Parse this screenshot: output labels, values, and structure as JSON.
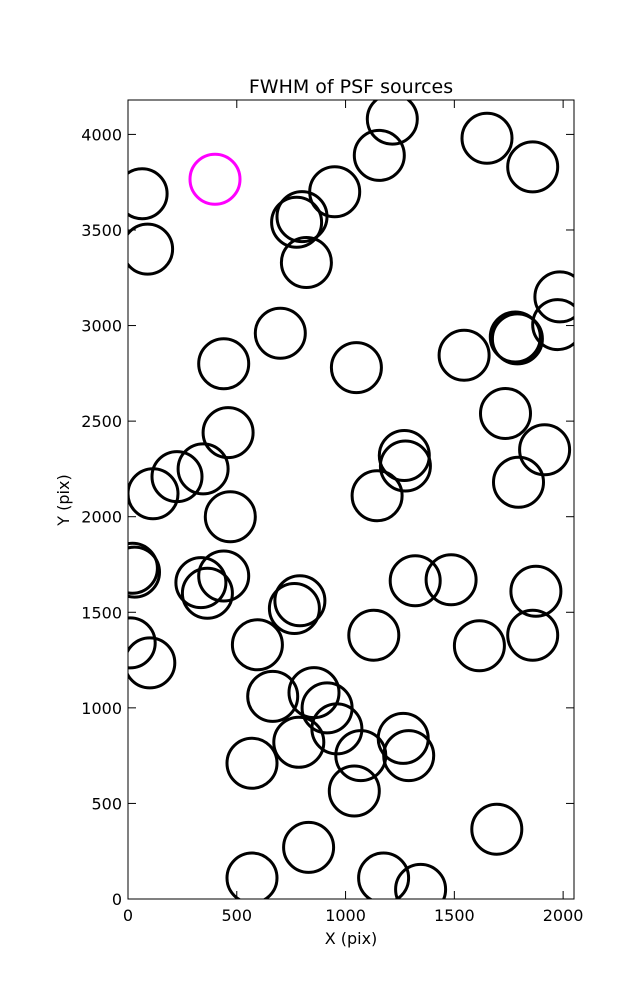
{
  "chart_data": {
    "type": "scatter",
    "title": "FWHM of PSF sources",
    "xlabel": "X (pix)",
    "ylabel": "Y (pix)",
    "xlim": [
      0,
      2050
    ],
    "ylim": [
      0,
      4180
    ],
    "xticks": [
      0,
      500,
      1000,
      1500,
      2000
    ],
    "yticks": [
      0,
      500,
      1000,
      1500,
      2000,
      2500,
      3000,
      3500,
      4000
    ],
    "grid": false,
    "legend": "none",
    "marker": "circle",
    "default_color": "#000000",
    "highlight_color": "#ff00ff",
    "series": [
      {
        "points": [
          {
            "x": 65,
            "y": 3690
          },
          {
            "x": 90,
            "y": 3400
          },
          {
            "x": 775,
            "y": 3540
          },
          {
            "x": 800,
            "y": 3570
          },
          {
            "x": 950,
            "y": 3700
          },
          {
            "x": 1155,
            "y": 3890
          },
          {
            "x": 1215,
            "y": 4080
          },
          {
            "x": 1650,
            "y": 3980
          },
          {
            "x": 1860,
            "y": 3830
          },
          {
            "x": 820,
            "y": 3330
          },
          {
            "x": 1985,
            "y": 3150
          },
          {
            "x": 1975,
            "y": 3005
          },
          {
            "x": 1780,
            "y": 2940
          },
          {
            "x": 1790,
            "y": 2930
          },
          {
            "x": 700,
            "y": 2960
          },
          {
            "x": 440,
            "y": 2800
          },
          {
            "x": 1050,
            "y": 2780
          },
          {
            "x": 1545,
            "y": 2845
          },
          {
            "x": 1735,
            "y": 2540
          },
          {
            "x": 460,
            "y": 2440
          },
          {
            "x": 1915,
            "y": 2350
          },
          {
            "x": 1270,
            "y": 2320
          },
          {
            "x": 1275,
            "y": 2265
          },
          {
            "x": 345,
            "y": 2250
          },
          {
            "x": 225,
            "y": 2210
          },
          {
            "x": 115,
            "y": 2120
          },
          {
            "x": 1145,
            "y": 2110
          },
          {
            "x": 1795,
            "y": 2180
          },
          {
            "x": 470,
            "y": 2000
          },
          {
            "x": 20,
            "y": 1730
          },
          {
            "x": 30,
            "y": 1710
          },
          {
            "x": 440,
            "y": 1690
          },
          {
            "x": 335,
            "y": 1655
          },
          {
            "x": 365,
            "y": 1600
          },
          {
            "x": 1320,
            "y": 1665
          },
          {
            "x": 1485,
            "y": 1670
          },
          {
            "x": 1875,
            "y": 1610
          },
          {
            "x": 790,
            "y": 1560
          },
          {
            "x": 765,
            "y": 1520
          },
          {
            "x": 1130,
            "y": 1380
          },
          {
            "x": 1860,
            "y": 1380
          },
          {
            "x": 1615,
            "y": 1325
          },
          {
            "x": 595,
            "y": 1330
          },
          {
            "x": 10,
            "y": 1340
          },
          {
            "x": 100,
            "y": 1235
          },
          {
            "x": 665,
            "y": 1060
          },
          {
            "x": 855,
            "y": 1080
          },
          {
            "x": 915,
            "y": 1000
          },
          {
            "x": 960,
            "y": 890
          },
          {
            "x": 785,
            "y": 820
          },
          {
            "x": 1265,
            "y": 840
          },
          {
            "x": 1290,
            "y": 750
          },
          {
            "x": 1070,
            "y": 750
          },
          {
            "x": 570,
            "y": 710
          },
          {
            "x": 1040,
            "y": 565
          },
          {
            "x": 1695,
            "y": 365
          },
          {
            "x": 830,
            "y": 270
          },
          {
            "x": 570,
            "y": 110
          },
          {
            "x": 1175,
            "y": 110
          },
          {
            "x": 1345,
            "y": 50
          }
        ]
      },
      {
        "color": "#ff00ff",
        "points": [
          {
            "x": 400,
            "y": 3765
          }
        ]
      }
    ]
  }
}
